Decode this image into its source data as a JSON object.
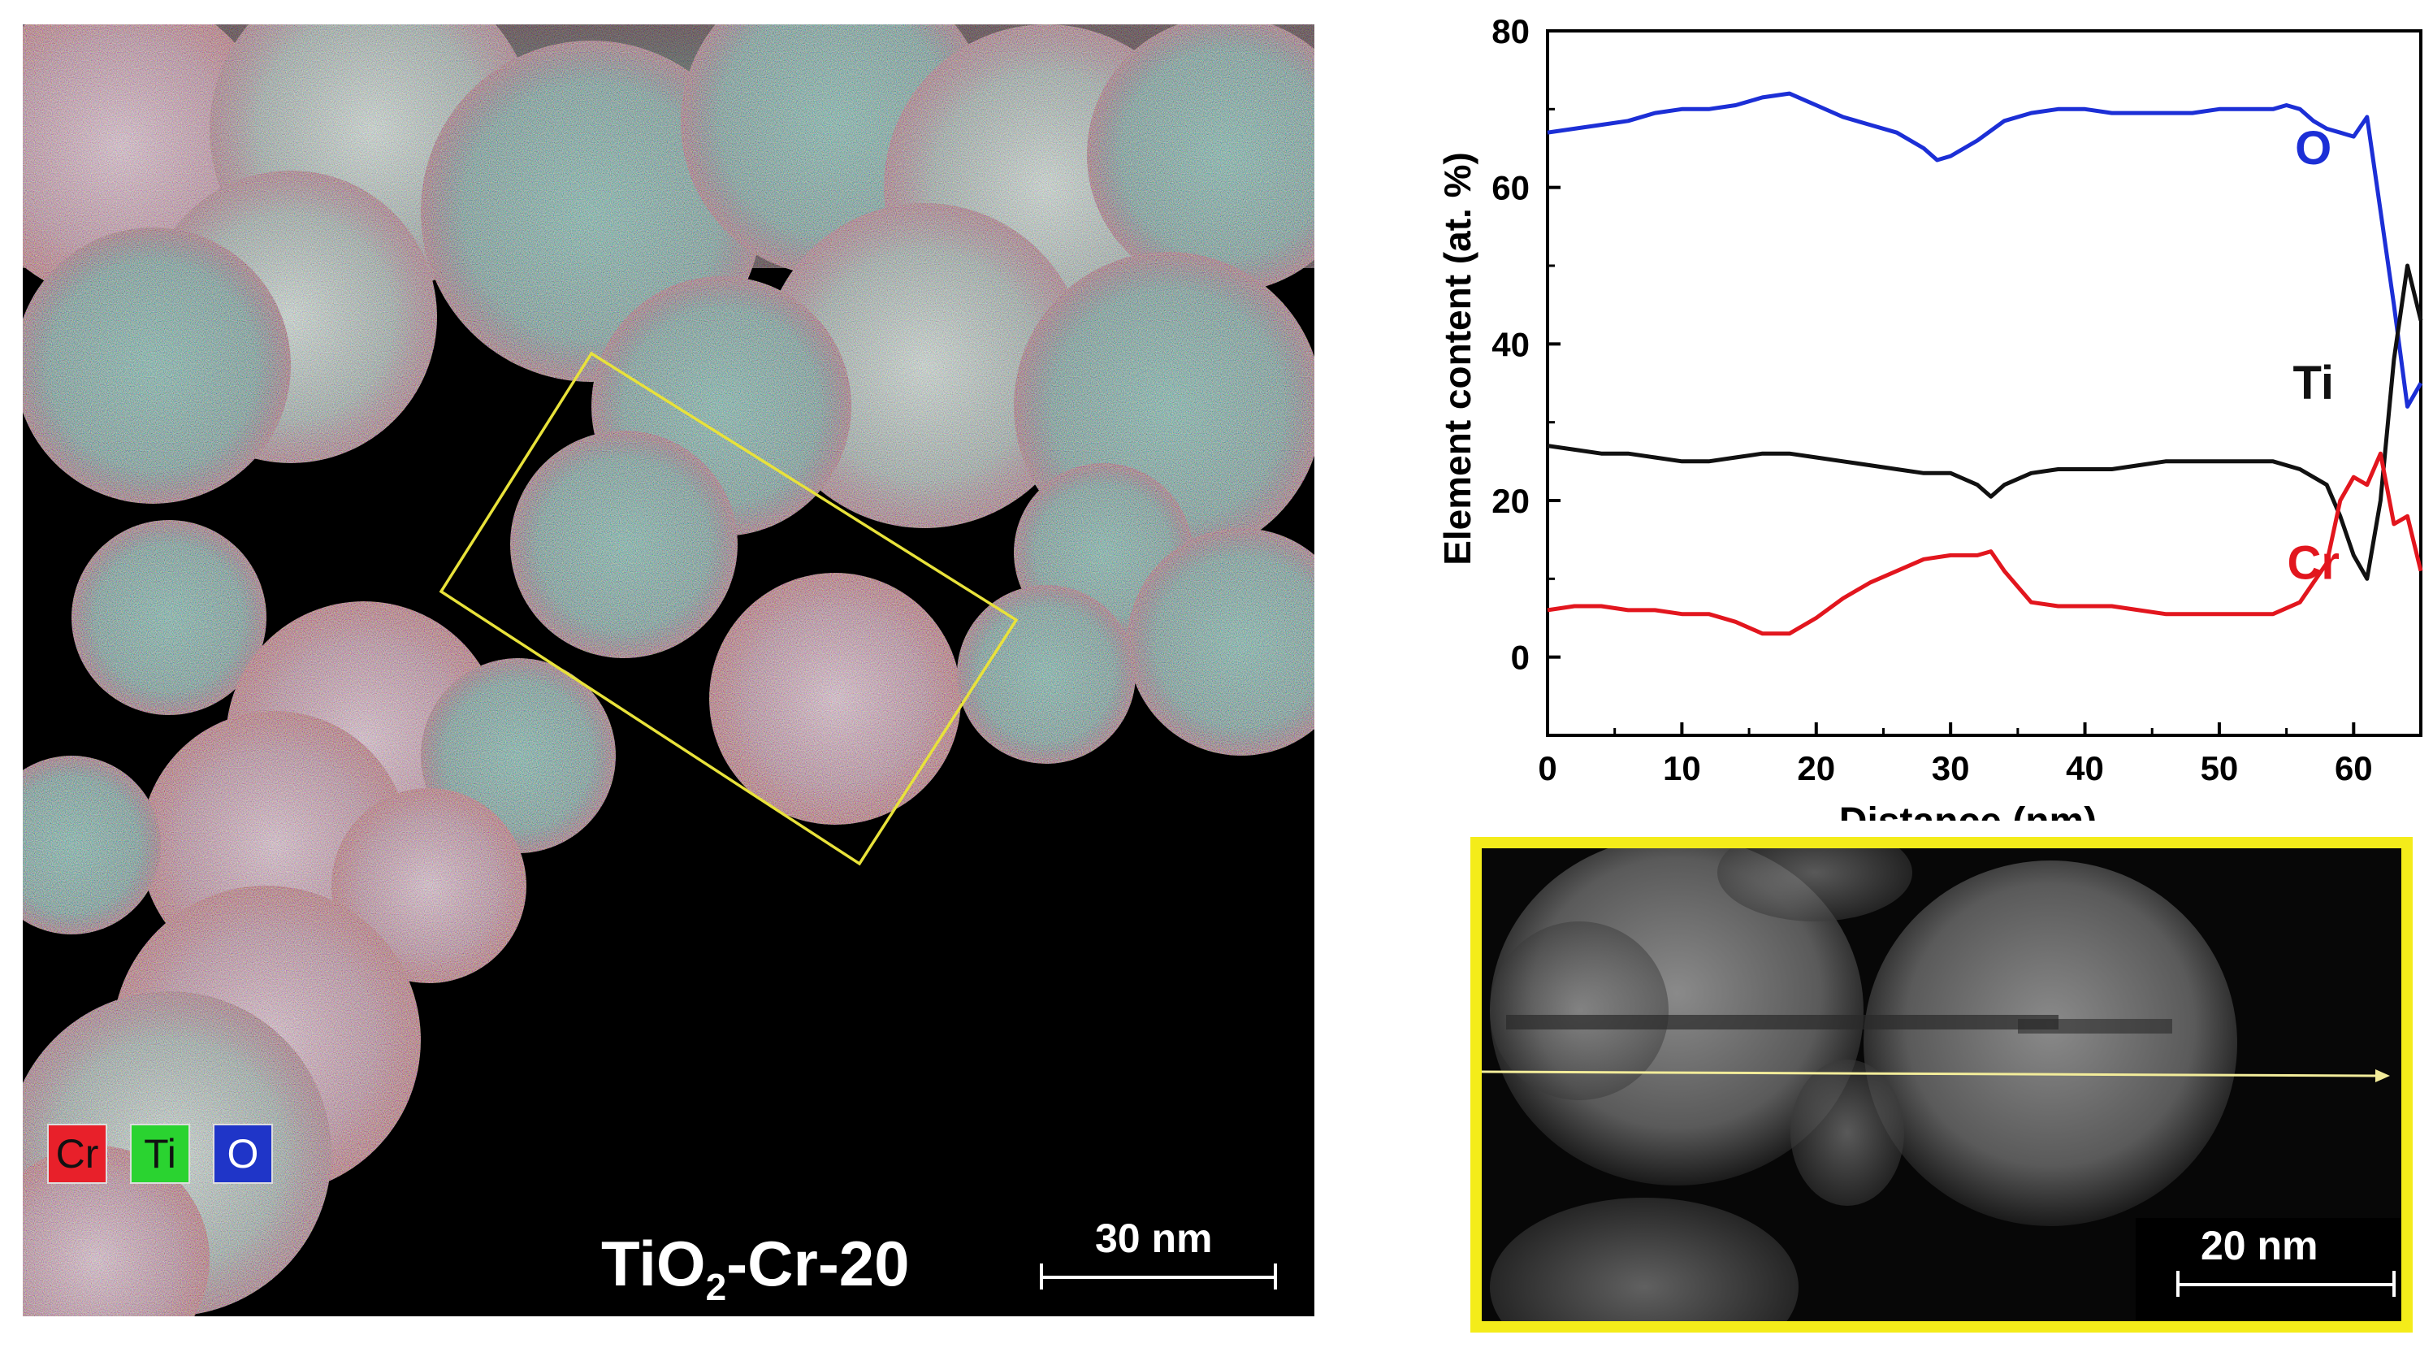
{
  "map_panel": {
    "legend": [
      {
        "label": "Cr",
        "color": "#e8202a",
        "text_color": "#111111"
      },
      {
        "label": "Ti",
        "color": "#2ad330",
        "text_color": "#111111"
      },
      {
        "label": "O",
        "color": "#1f35c8",
        "text_color": "#ffffff"
      }
    ],
    "sample_label_main": "TiO",
    "sample_label_sub": "2",
    "sample_label_rest": "-Cr-20",
    "scale_bar_label": "30 nm"
  },
  "inset_panel": {
    "border_color": "#f4ec1a",
    "scale_bar_label": "20 nm",
    "line_color": "#f2ec9a"
  },
  "chart_data": {
    "type": "line",
    "title": "",
    "xlabel": "Distance (nm)",
    "ylabel": "Element content (at. %)",
    "xlim": [
      0,
      65
    ],
    "ylim": [
      -10,
      80
    ],
    "xticks": [
      0,
      10,
      20,
      30,
      40,
      50,
      60
    ],
    "yticks": [
      0,
      20,
      40,
      60,
      80
    ],
    "series": [
      {
        "name": "O",
        "color": "#1c2fd6",
        "x": [
          0,
          2,
          4,
          6,
          8,
          10,
          12,
          14,
          16,
          18,
          20,
          22,
          24,
          26,
          28,
          29,
          30,
          32,
          34,
          36,
          38,
          40,
          42,
          44,
          46,
          48,
          50,
          52,
          54,
          55,
          56,
          57,
          58,
          59,
          60,
          61,
          62,
          63,
          64,
          65
        ],
        "values": [
          67,
          67.5,
          68,
          68.5,
          69.5,
          70,
          70,
          70.5,
          71.5,
          72,
          70.5,
          69,
          68,
          67,
          65,
          63.5,
          64,
          66,
          68.5,
          69.5,
          70,
          70,
          69.5,
          69.5,
          69.5,
          69.5,
          70,
          70,
          70,
          70.5,
          70,
          68.5,
          67.5,
          67,
          66.5,
          69,
          57,
          45,
          32,
          35
        ]
      },
      {
        "name": "Ti",
        "color": "#111111",
        "x": [
          0,
          2,
          4,
          6,
          8,
          10,
          12,
          14,
          16,
          18,
          20,
          22,
          24,
          26,
          28,
          30,
          32,
          33,
          34,
          36,
          38,
          40,
          42,
          44,
          46,
          48,
          50,
          52,
          54,
          56,
          58,
          59,
          60,
          61,
          62,
          63,
          64,
          65
        ],
        "values": [
          27,
          26.5,
          26,
          26,
          25.5,
          25,
          25,
          25.5,
          26,
          26,
          25.5,
          25,
          24.5,
          24,
          23.5,
          23.5,
          22,
          20.5,
          22,
          23.5,
          24,
          24,
          24,
          24.5,
          25,
          25,
          25,
          25,
          25,
          24,
          22,
          18,
          13,
          10,
          20,
          38,
          50,
          43
        ]
      },
      {
        "name": "Cr",
        "color": "#e2161e",
        "x": [
          0,
          2,
          4,
          6,
          8,
          10,
          12,
          14,
          16,
          18,
          20,
          22,
          24,
          26,
          28,
          30,
          32,
          33,
          34,
          36,
          38,
          40,
          42,
          44,
          46,
          48,
          50,
          52,
          54,
          56,
          58,
          59,
          60,
          61,
          62,
          63,
          64,
          65
        ],
        "values": [
          6,
          6.5,
          6.5,
          6,
          6,
          5.5,
          5.5,
          4.5,
          3,
          3,
          5,
          7.5,
          9.5,
          11,
          12.5,
          13,
          13,
          13.5,
          11,
          7,
          6.5,
          6.5,
          6.5,
          6,
          5.5,
          5.5,
          5.5,
          5.5,
          5.5,
          7,
          12,
          20,
          23,
          22,
          26,
          17,
          18,
          11
        ]
      }
    ],
    "annotations": [
      {
        "text": "O",
        "x": 57,
        "y": 63,
        "color": "#1c2fd6"
      },
      {
        "text": "Ti",
        "x": 57,
        "y": 33,
        "color": "#111111"
      },
      {
        "text": "Cr",
        "x": 57,
        "y": 10,
        "color": "#e2161e"
      }
    ]
  }
}
